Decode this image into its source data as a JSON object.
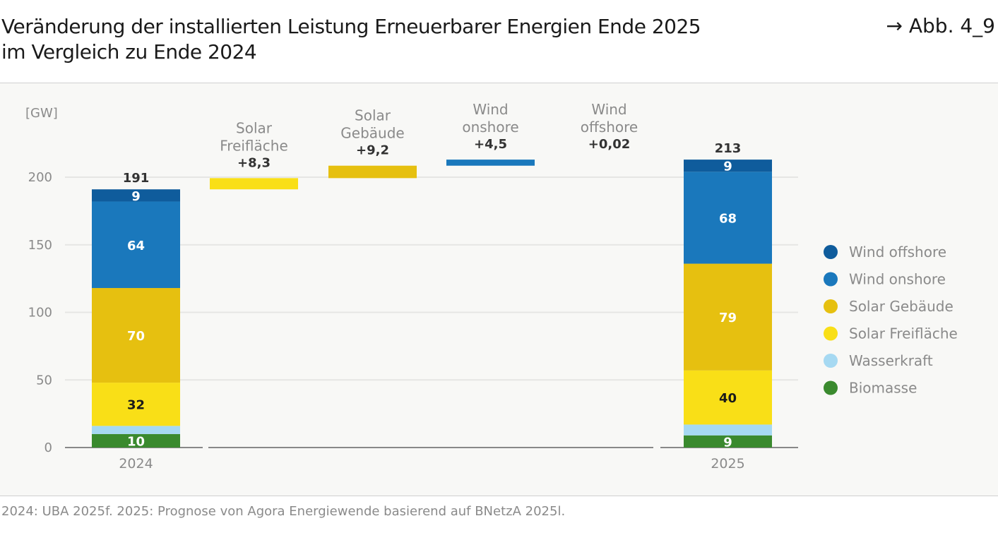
{
  "title_line1": "Veränderung der installierten Leistung Erneuerbarer Energien Ende 2025",
  "title_line2": "im Vergleich zu Ende 2024",
  "figure_ref": "→ Abb. 4_9",
  "source": "2024: UBA 2025f. 2025: Prognose von Agora Energiewende basierend auf BNetzA 2025l.",
  "chart_data": {
    "type": "bar",
    "subtype": "stacked waterfall",
    "ylabel": "[GW]",
    "ylim": [
      0,
      220
    ],
    "yticks": [
      0,
      50,
      100,
      150,
      200
    ],
    "grid": true,
    "legend_position": "right",
    "series": [
      {
        "name": "Biomasse",
        "color": "#3a8a2e"
      },
      {
        "name": "Wasserkraft",
        "color": "#a6d9f2"
      },
      {
        "name": "Solar Freifläche",
        "color": "#f9df17"
      },
      {
        "name": "Solar Gebäude",
        "color": "#e6c010"
      },
      {
        "name": "Wind onshore",
        "color": "#1a78bc"
      },
      {
        "name": "Wind offshore",
        "color": "#0f5c9c"
      }
    ],
    "stacks": [
      {
        "category": "2024",
        "total": "191",
        "values": [
          10,
          6,
          32,
          70,
          64,
          9
        ],
        "labels": [
          "10",
          "",
          "32",
          "70",
          "64",
          "9"
        ]
      },
      {
        "category": "2025",
        "total": "213",
        "values": [
          9,
          8,
          40,
          79,
          68,
          9
        ],
        "labels": [
          "9",
          "",
          "40",
          "79",
          "68",
          "9"
        ]
      }
    ],
    "changes": [
      {
        "name_lines": [
          "Solar",
          "Freifläche"
        ],
        "series": "Solar Freifläche",
        "from": 191,
        "delta": 8.3,
        "label": "+8,3"
      },
      {
        "name_lines": [
          "Solar",
          "Gebäude"
        ],
        "series": "Solar Gebäude",
        "from": 199.3,
        "delta": 9.2,
        "label": "+9,2"
      },
      {
        "name_lines": [
          "Wind",
          "onshore"
        ],
        "series": "Wind onshore",
        "from": 208.5,
        "delta": 4.5,
        "label": "+4,5"
      },
      {
        "name_lines": [
          "Wind",
          "offshore"
        ],
        "series": "Wind offshore",
        "from": 213,
        "delta": 0.02,
        "label": "+0,02"
      }
    ]
  }
}
